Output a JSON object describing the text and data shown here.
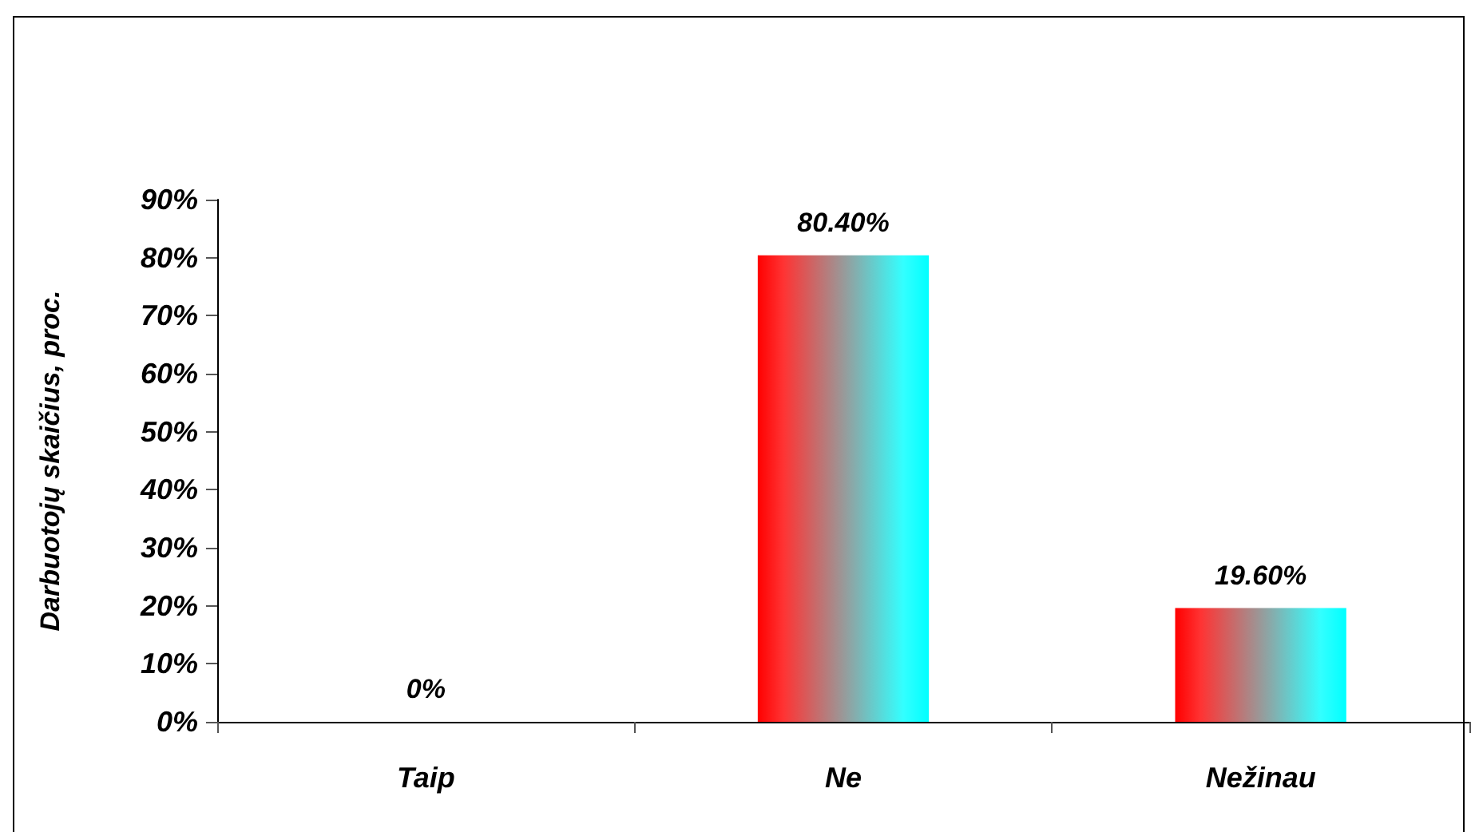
{
  "chart_data": {
    "type": "bar",
    "ylabel": "Darbuotojų skaičius, proc.",
    "categories": [
      "Taip",
      "Ne",
      "Nežinau"
    ],
    "values": [
      0,
      80.4,
      19.6
    ],
    "value_labels": [
      "0%",
      "80.40%",
      "19.60%"
    ],
    "color": "#ff0000",
    "ylim": [
      0,
      90
    ],
    "yticks": [
      {
        "value": 0,
        "label": "0%"
      },
      {
        "value": 10,
        "label": "10%"
      },
      {
        "value": 20,
        "label": "20%"
      },
      {
        "value": 30,
        "label": "30%"
      },
      {
        "value": 40,
        "label": "40%"
      },
      {
        "value": 50,
        "label": "50%"
      },
      {
        "value": 60,
        "label": "60%"
      },
      {
        "value": 70,
        "label": "70%"
      },
      {
        "value": 80,
        "label": "80%"
      },
      {
        "value": 90,
        "label": "90%"
      }
    ]
  }
}
